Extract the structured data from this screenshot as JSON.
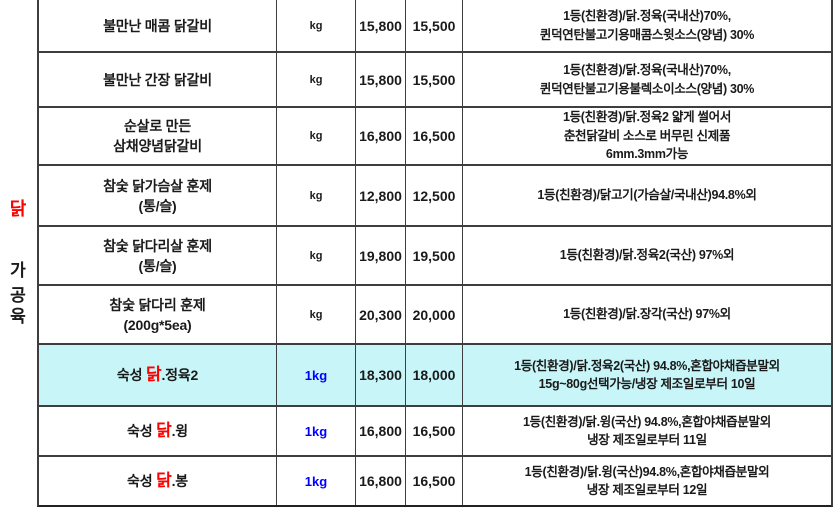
{
  "colors": {
    "highlight_row": "#c8f5f8",
    "unit_blue": "#0000ff",
    "chicken_red": "#ff0000",
    "grid_border": "#3e3e3e",
    "text": "#1a1a1a"
  },
  "sidebar": {
    "category_char": "닭",
    "group_chars": [
      "가",
      "공",
      "육"
    ]
  },
  "table": {
    "rows": [
      {
        "height": 53,
        "highlight": false,
        "name_lines": [
          [
            {
              "t": "불만난 매콤 닭갈비",
              "red": false
            }
          ]
        ],
        "unit": "kg",
        "unit_blue": false,
        "price_kg": "15,800",
        "price_box": "15,500",
        "desc_lines": [
          "1등(친환경)/닭.정육(국내산)70%,",
          "퀸덕연탄불고기용매콤스윗소스(양념) 30%"
        ]
      },
      {
        "height": 55,
        "highlight": false,
        "name_lines": [
          [
            {
              "t": "불만난 간장 닭갈비",
              "red": false
            }
          ]
        ],
        "unit": "kg",
        "unit_blue": false,
        "price_kg": "15,800",
        "price_box": "15,500",
        "desc_lines": [
          "1등(친환경)/닭.정육(국내산)70%,",
          "퀸덕연탄불고기용불렉소이소스(양념) 30%"
        ]
      },
      {
        "height": 58,
        "highlight": false,
        "name_lines": [
          [
            {
              "t": "순살로 만든",
              "red": false
            }
          ],
          [
            {
              "t": "삼채양념닭갈비",
              "red": false
            }
          ]
        ],
        "unit": "kg",
        "unit_blue": false,
        "price_kg": "16,800",
        "price_box": "16,500",
        "desc_lines": [
          "1등(친환경)/닭.정육2 얇게 썰어서",
          "춘천닭갈비 소스로 버무린 신제품",
          "6mm.3mm가능"
        ]
      },
      {
        "height": 61,
        "highlight": false,
        "name_lines": [
          [
            {
              "t": "참숯 닭가슴살 훈제",
              "red": false
            }
          ],
          [
            {
              "t": "(통/슬)",
              "red": false
            }
          ]
        ],
        "unit": "kg",
        "unit_blue": false,
        "price_kg": "12,800",
        "price_box": "12,500",
        "desc_lines": [
          "1등(친환경)/닭고기(가슴살/국내산)94.8%외"
        ]
      },
      {
        "height": 59,
        "highlight": false,
        "name_lines": [
          [
            {
              "t": "참숯 닭다리살 훈제",
              "red": false
            }
          ],
          [
            {
              "t": "(통/슬)",
              "red": false
            }
          ]
        ],
        "unit": "kg",
        "unit_blue": false,
        "price_kg": "19,800",
        "price_box": "19,500",
        "desc_lines": [
          "1등(친환경)/닭.정육2(국산) 97%외"
        ]
      },
      {
        "height": 59,
        "highlight": false,
        "name_lines": [
          [
            {
              "t": "참숯 닭다리 훈제",
              "red": false
            }
          ],
          [
            {
              "t": "(200g*5ea)",
              "red": false
            }
          ]
        ],
        "unit": "kg",
        "unit_blue": false,
        "price_kg": "20,300",
        "price_box": "20,000",
        "desc_lines": [
          "1등(친환경)/닭.장각(국산) 97%외"
        ]
      },
      {
        "height": 62,
        "highlight": true,
        "name_lines": [
          [
            {
              "t": "숙성 ",
              "red": false
            },
            {
              "t": "닭",
              "red": true
            },
            {
              "t": ".정육2",
              "red": false
            }
          ]
        ],
        "unit": "1kg",
        "unit_blue": true,
        "price_kg": "18,300",
        "price_box": "18,000",
        "desc_lines": [
          "1등(친환경)/닭.정육2(국산) 94.8%,혼합야채즙분말외",
          "15g~80g선택가능/냉장 제조일로부터 10일"
        ]
      },
      {
        "height": 50,
        "highlight": false,
        "name_lines": [
          [
            {
              "t": "숙성 ",
              "red": false
            },
            {
              "t": "닭",
              "red": true
            },
            {
              "t": ".윙",
              "red": false
            }
          ]
        ],
        "unit": "1kg",
        "unit_blue": true,
        "price_kg": "16,800",
        "price_box": "16,500",
        "desc_lines": [
          "1등(친환경)/닭.윙(국산) 94.8%,혼합야채즙분말외",
          "냉장 제조일로부터 11일"
        ]
      },
      {
        "height": 48,
        "highlight": false,
        "name_lines": [
          [
            {
              "t": "숙성 ",
              "red": false
            },
            {
              "t": "닭",
              "red": true
            },
            {
              "t": ".봉",
              "red": false
            }
          ]
        ],
        "unit": "1kg",
        "unit_blue": true,
        "price_kg": "16,800",
        "price_box": "16,500",
        "desc_lines": [
          "1등(친환경)/닭.윙(국산)94.8%,혼합야채즙분말외",
          "냉장 제조일로부터 12일"
        ]
      }
    ]
  }
}
